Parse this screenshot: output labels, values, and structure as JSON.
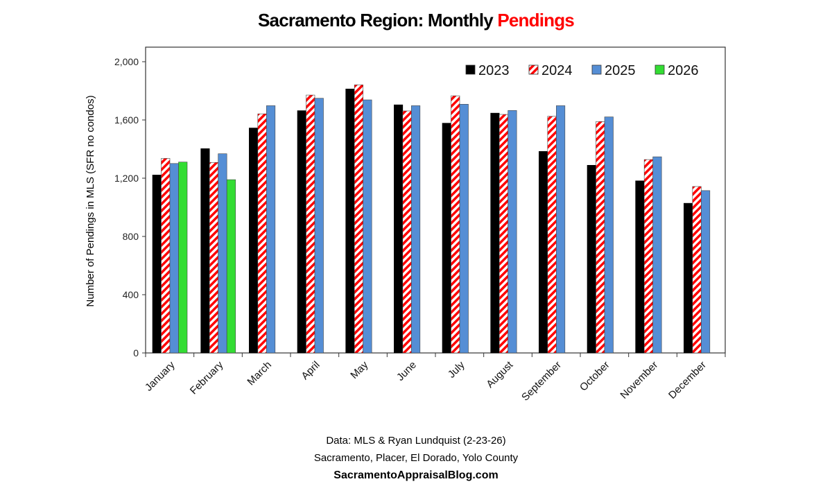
{
  "chart_data": {
    "type": "bar",
    "title": "Sacramento Region:  Monthly",
    "title_highlight": "Pendings",
    "title_highlight_color": "#ff0000",
    "ylabel": "Number of Pendings in MLS (SFR no condos)",
    "xlabel": "",
    "ylim": [
      0,
      2000
    ],
    "yticks": [
      0,
      400,
      800,
      1200,
      1600,
      2000
    ],
    "ytick_labels": [
      "0",
      "400",
      "800",
      "1,200",
      "1,600",
      "2,000"
    ],
    "grid": false,
    "legend_position": "top-right",
    "categories": [
      "January",
      "February",
      "March",
      "April",
      "May",
      "June",
      "July",
      "August",
      "September",
      "October",
      "November",
      "December"
    ],
    "series": [
      {
        "name": "2023",
        "color": "#000000",
        "pattern": "solid",
        "values": [
          1222,
          1403,
          1545,
          1664,
          1813,
          1704,
          1578,
          1647,
          1384,
          1289,
          1182,
          1028
        ]
      },
      {
        "name": "2024",
        "color": "#ff0000",
        "pattern": "red-white-diagonal-stripes",
        "values": [
          1336,
          1308,
          1642,
          1771,
          1841,
          1662,
          1766,
          1638,
          1625,
          1589,
          1328,
          1143
        ]
      },
      {
        "name": "2025",
        "color": "#558ed5",
        "pattern": "solid",
        "values": [
          1301,
          1368,
          1698,
          1749,
          1738,
          1698,
          1708,
          1665,
          1698,
          1621,
          1347,
          1115
        ]
      },
      {
        "name": "2026",
        "color": "#33dd33",
        "pattern": "solid",
        "values": [
          1311,
          1190,
          null,
          null,
          null,
          null,
          null,
          null,
          null,
          null,
          null,
          null
        ]
      }
    ]
  },
  "footer": {
    "line1": "Data: MLS & Ryan Lundquist (2-23-26)",
    "line2": "Sacramento, Placer, El Dorado, Yolo County",
    "line3": "SacramentoAppraisalBlog.com"
  }
}
